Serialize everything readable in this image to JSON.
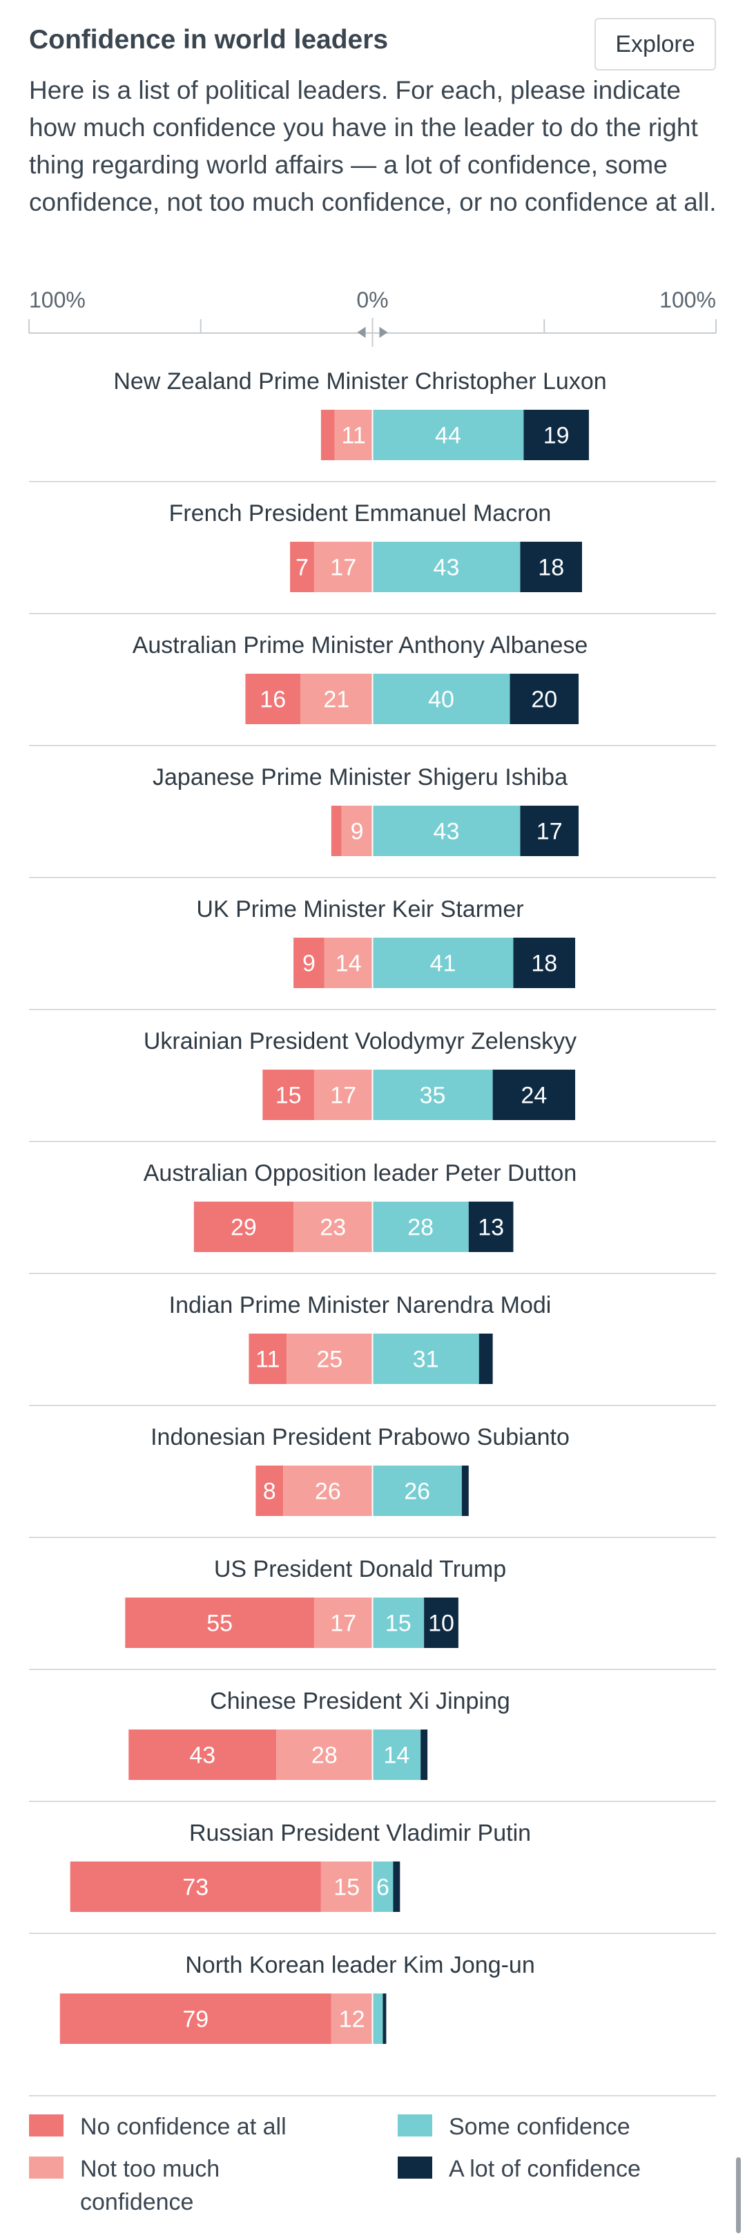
{
  "header": {
    "title": "Confidence in world leaders",
    "explore_label": "Explore"
  },
  "question": "Here is a list of political leaders. For each, please indicate how much confidence you have in the leader to do the right thing regarding world affairs — a lot of confidence, some confidence, not too much confidence, or no confidence at all.",
  "axis": {
    "left_label": "100%",
    "center_label": "0%",
    "right_label": "100%"
  },
  "colors": {
    "no_confidence": "#f07575",
    "not_too_much": "#f5a09b",
    "some": "#76ced2",
    "a_lot": "#0e2a43",
    "divider": "#d7dbde",
    "axis": "#c8cdd1"
  },
  "legend": {
    "no_confidence": "No confidence at all",
    "not_too_much": "Not too much confidence",
    "some": "Some confidence",
    "a_lot": "A lot of confidence"
  },
  "chart_data": {
    "type": "bar",
    "orientation": "diverging-horizontal-stacked",
    "xlim": [
      -100,
      100
    ],
    "series": [
      {
        "name": "No confidence at all",
        "side": "negative",
        "values": [
          4,
          7,
          16,
          3,
          9,
          15,
          29,
          11,
          8,
          55,
          43,
          73,
          79
        ]
      },
      {
        "name": "Not too much confidence",
        "side": "negative",
        "values": [
          11,
          17,
          21,
          9,
          14,
          17,
          23,
          25,
          26,
          17,
          28,
          15,
          12
        ]
      },
      {
        "name": "Some confidence",
        "side": "positive",
        "values": [
          44,
          43,
          40,
          43,
          41,
          35,
          28,
          31,
          26,
          15,
          14,
          6,
          3
        ]
      },
      {
        "name": "A lot of confidence",
        "side": "positive",
        "values": [
          19,
          18,
          20,
          17,
          18,
          24,
          13,
          4,
          2,
          10,
          2,
          2,
          1
        ]
      }
    ],
    "categories": [
      "New Zealand Prime Minister Christopher Luxon",
      "French President Emmanuel Macron",
      "Australian Prime Minister Anthony Albanese",
      "Japanese Prime Minister Shigeru Ishiba",
      "UK Prime Minister Keir Starmer",
      "Ukrainian President Volodymyr Zelenskyy",
      "Australian Opposition leader Peter Dutton",
      "Indian Prime Minister Narendra Modi",
      "Indonesian President Prabowo Subianto",
      "US President Donald Trump",
      "Chinese President Xi Jinping",
      "Russian President Vladimir Putin",
      "North Korean leader Kim Jong-un"
    ]
  }
}
